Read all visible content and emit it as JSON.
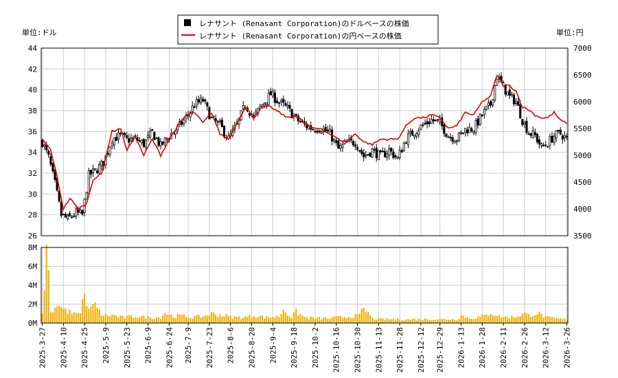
{
  "chart_data": {
    "type": "candlestick+line+bar",
    "legend": {
      "position": "top-center",
      "entries": [
        {
          "label": "レナサント (Renasant Corporation)のドルベースの株価",
          "marker": "black-square"
        },
        {
          "label": "レナサント (Renasant Corporation)の円ベースの株価",
          "marker": "red-line"
        }
      ]
    },
    "left_unit_label": "単位:ドル",
    "right_unit_label": "単位:円",
    "y_left": {
      "min": 26,
      "max": 44,
      "ticks": [
        "26",
        "28",
        "30",
        "32",
        "34",
        "36",
        "38",
        "40",
        "42",
        "44"
      ]
    },
    "y_right": {
      "min": 3500,
      "max": 7000,
      "ticks": [
        "3500",
        "4000",
        "4500",
        "5000",
        "5500",
        "6000",
        "6500",
        "7000"
      ]
    },
    "volume_axis": {
      "min": 0,
      "max": 8000000,
      "ticks": [
        "0M",
        "2M",
        "4M",
        "6M",
        "8M"
      ]
    },
    "x_ticks": [
      "2025-3-27",
      "2025-4-10",
      "2025-4-25",
      "2025-5-9",
      "2025-5-23",
      "2025-6-9",
      "2025-6-24",
      "2025-7-9",
      "2025-7-23",
      "2025-8-6",
      "2025-8-20",
      "2025-9-4",
      "2025-9-18",
      "2025-10-2",
      "2025-10-16",
      "2025-10-30",
      "2025-11-13",
      "2025-11-28",
      "2025-12-12",
      "2025-12-29",
      "2026-1-13",
      "2026-1-28",
      "2026-2-11",
      "2026-2-26",
      "2026-3-12",
      "2026-3-26"
    ],
    "price_keypoints_usd": [
      [
        0,
        35.0
      ],
      [
        3,
        33.5
      ],
      [
        6,
        31.0
      ],
      [
        9,
        28.0
      ],
      [
        12,
        27.6
      ],
      [
        16,
        28.2
      ],
      [
        19,
        28.0
      ],
      [
        22,
        31.8
      ],
      [
        25,
        32.2
      ],
      [
        29,
        33.0
      ],
      [
        33,
        35.3
      ],
      [
        37,
        35.6
      ],
      [
        40,
        35.2
      ],
      [
        44,
        35.3
      ],
      [
        48,
        34.8
      ],
      [
        52,
        35.9
      ],
      [
        56,
        34.6
      ],
      [
        60,
        35.6
      ],
      [
        64,
        36.3
      ],
      [
        68,
        37.3
      ],
      [
        72,
        38.6
      ],
      [
        76,
        39.0
      ],
      [
        80,
        37.2
      ],
      [
        84,
        36.6
      ],
      [
        88,
        35.3
      ],
      [
        92,
        36.6
      ],
      [
        96,
        38.6
      ],
      [
        100,
        37.3
      ],
      [
        104,
        38.6
      ],
      [
        108,
        39.6
      ],
      [
        112,
        38.8
      ],
      [
        116,
        38.2
      ],
      [
        120,
        37.2
      ],
      [
        124,
        36.6
      ],
      [
        128,
        36.3
      ],
      [
        132,
        36.3
      ],
      [
        136,
        35.8
      ],
      [
        140,
        34.3
      ],
      [
        144,
        34.9
      ],
      [
        148,
        35.0
      ],
      [
        152,
        33.6
      ],
      [
        156,
        34.2
      ],
      [
        160,
        33.6
      ],
      [
        164,
        34.2
      ],
      [
        168,
        33.4
      ],
      [
        172,
        35.3
      ],
      [
        176,
        36.0
      ],
      [
        180,
        36.6
      ],
      [
        184,
        37.1
      ],
      [
        188,
        36.8
      ],
      [
        192,
        35.6
      ],
      [
        196,
        35.3
      ],
      [
        200,
        36.2
      ],
      [
        204,
        36.3
      ],
      [
        208,
        37.6
      ],
      [
        212,
        38.6
      ],
      [
        215,
        41.3
      ],
      [
        218,
        40.3
      ],
      [
        221,
        39.3
      ],
      [
        224,
        38.9
      ],
      [
        227,
        37.1
      ],
      [
        230,
        35.9
      ],
      [
        233,
        35.6
      ],
      [
        236,
        34.5
      ],
      [
        239,
        34.9
      ],
      [
        242,
        35.6
      ],
      [
        245,
        35.8
      ],
      [
        248,
        35.3
      ]
    ],
    "jpy_keypoints": [
      [
        0,
        5300
      ],
      [
        4,
        5100
      ],
      [
        7,
        4600
      ],
      [
        10,
        4000
      ],
      [
        13,
        4200
      ],
      [
        17,
        4000
      ],
      [
        21,
        4100
      ],
      [
        24,
        4550
      ],
      [
        28,
        4650
      ],
      [
        33,
        5450
      ],
      [
        37,
        5500
      ],
      [
        40,
        5100
      ],
      [
        44,
        5350
      ],
      [
        48,
        5000
      ],
      [
        52,
        5300
      ],
      [
        56,
        5000
      ],
      [
        60,
        5300
      ],
      [
        64,
        5550
      ],
      [
        68,
        5750
      ],
      [
        72,
        5800
      ],
      [
        76,
        5600
      ],
      [
        80,
        5800
      ],
      [
        84,
        5400
      ],
      [
        88,
        5300
      ],
      [
        92,
        5600
      ],
      [
        96,
        5900
      ],
      [
        100,
        5700
      ],
      [
        104,
        5900
      ],
      [
        108,
        5900
      ],
      [
        112,
        5800
      ],
      [
        116,
        5700
      ],
      [
        120,
        5750
      ],
      [
        124,
        5600
      ],
      [
        128,
        5500
      ],
      [
        132,
        5500
      ],
      [
        136,
        5400
      ],
      [
        140,
        5300
      ],
      [
        144,
        5250
      ],
      [
        148,
        5400
      ],
      [
        152,
        5250
      ],
      [
        156,
        5200
      ],
      [
        160,
        5300
      ],
      [
        164,
        5300
      ],
      [
        168,
        5300
      ],
      [
        172,
        5550
      ],
      [
        176,
        5700
      ],
      [
        180,
        5700
      ],
      [
        184,
        5750
      ],
      [
        188,
        5700
      ],
      [
        192,
        5500
      ],
      [
        196,
        5550
      ],
      [
        200,
        5800
      ],
      [
        204,
        5750
      ],
      [
        208,
        6000
      ],
      [
        212,
        6100
      ],
      [
        215,
        6500
      ],
      [
        218,
        6300
      ],
      [
        221,
        6300
      ],
      [
        224,
        6200
      ],
      [
        227,
        5900
      ],
      [
        230,
        5850
      ],
      [
        233,
        5750
      ],
      [
        236,
        5700
      ],
      [
        239,
        5700
      ],
      [
        242,
        5800
      ],
      [
        245,
        5650
      ],
      [
        248,
        5600
      ]
    ],
    "volume_keypoints_m": [
      [
        0,
        0.8
      ],
      [
        2,
        8.3
      ],
      [
        4,
        1.2
      ],
      [
        6,
        1.6
      ],
      [
        8,
        1.8
      ],
      [
        10,
        1.5
      ],
      [
        12,
        1.3
      ],
      [
        14,
        1.0
      ],
      [
        16,
        0.9
      ],
      [
        18,
        1.0
      ],
      [
        20,
        3.1
      ],
      [
        22,
        1.5
      ],
      [
        24,
        2.0
      ],
      [
        26,
        1.6
      ],
      [
        28,
        0.9
      ],
      [
        30,
        0.8
      ],
      [
        34,
        0.8
      ],
      [
        38,
        0.6
      ],
      [
        44,
        0.7
      ],
      [
        50,
        0.6
      ],
      [
        56,
        0.6
      ],
      [
        58,
        1.1
      ],
      [
        62,
        0.7
      ],
      [
        66,
        0.8
      ],
      [
        70,
        0.6
      ],
      [
        76,
        0.7
      ],
      [
        80,
        1.0
      ],
      [
        86,
        0.8
      ],
      [
        90,
        0.6
      ],
      [
        96,
        0.6
      ],
      [
        100,
        0.8
      ],
      [
        106,
        0.6
      ],
      [
        112,
        0.7
      ],
      [
        114,
        1.4
      ],
      [
        118,
        0.6
      ],
      [
        120,
        1.2
      ],
      [
        124,
        0.6
      ],
      [
        130,
        0.5
      ],
      [
        136,
        0.5
      ],
      [
        140,
        0.6
      ],
      [
        146,
        0.7
      ],
      [
        150,
        0.8
      ],
      [
        152,
        1.6
      ],
      [
        156,
        0.5
      ],
      [
        160,
        0.4
      ],
      [
        166,
        0.4
      ],
      [
        172,
        0.4
      ],
      [
        180,
        0.4
      ],
      [
        186,
        0.4
      ],
      [
        192,
        0.4
      ],
      [
        196,
        0.4
      ],
      [
        198,
        0.8
      ],
      [
        202,
        0.5
      ],
      [
        206,
        0.6
      ],
      [
        210,
        0.8
      ],
      [
        212,
        1.1
      ],
      [
        216,
        0.7
      ],
      [
        220,
        0.6
      ],
      [
        224,
        0.7
      ],
      [
        228,
        1.0
      ],
      [
        230,
        0.8
      ],
      [
        234,
        1.1
      ],
      [
        238,
        0.6
      ],
      [
        242,
        0.5
      ],
      [
        246,
        0.4
      ],
      [
        248,
        0.4
      ]
    ],
    "n_days": 249,
    "colors": {
      "up": "#ffffff",
      "down": "#000000",
      "jpy_line": "#dd0000",
      "volume": "#f0b000",
      "grid": "#cccccc"
    }
  }
}
